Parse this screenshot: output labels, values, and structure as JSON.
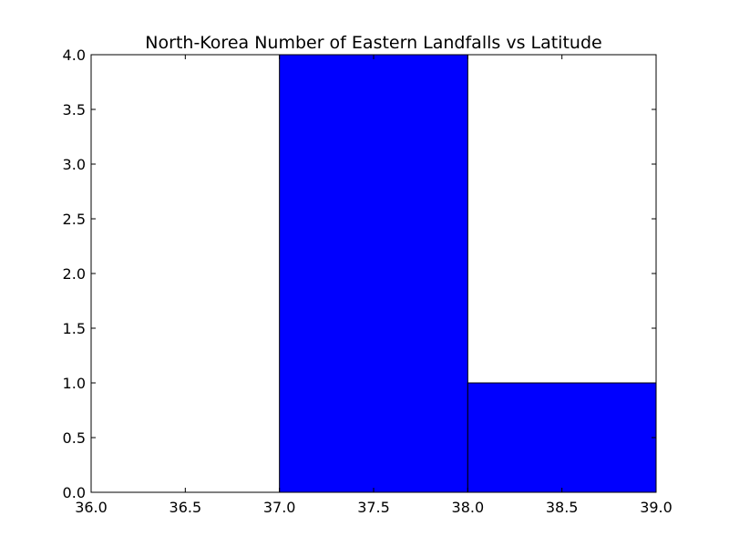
{
  "chart_data": {
    "type": "bar",
    "title": "North-Korea Number of Eastern Landfalls vs Latitude",
    "xlabel": "",
    "ylabel": "",
    "xlim": [
      36.0,
      39.0
    ],
    "ylim": [
      0.0,
      4.0
    ],
    "grid": false,
    "bins": [
      {
        "x0": 36.0,
        "x1": 37.0,
        "value": 0
      },
      {
        "x0": 37.0,
        "x1": 38.0,
        "value": 4
      },
      {
        "x0": 38.0,
        "x1": 39.0,
        "value": 1
      }
    ],
    "xticks": [
      "36.0",
      "36.5",
      "37.0",
      "37.5",
      "38.0",
      "38.5",
      "39.0"
    ],
    "yticks": [
      "0.0",
      "0.5",
      "1.0",
      "1.5",
      "2.0",
      "2.5",
      "3.0",
      "3.5",
      "4.0"
    ],
    "colors": {
      "bar_fill": "#0000ff",
      "bar_edge": "#000000"
    }
  }
}
